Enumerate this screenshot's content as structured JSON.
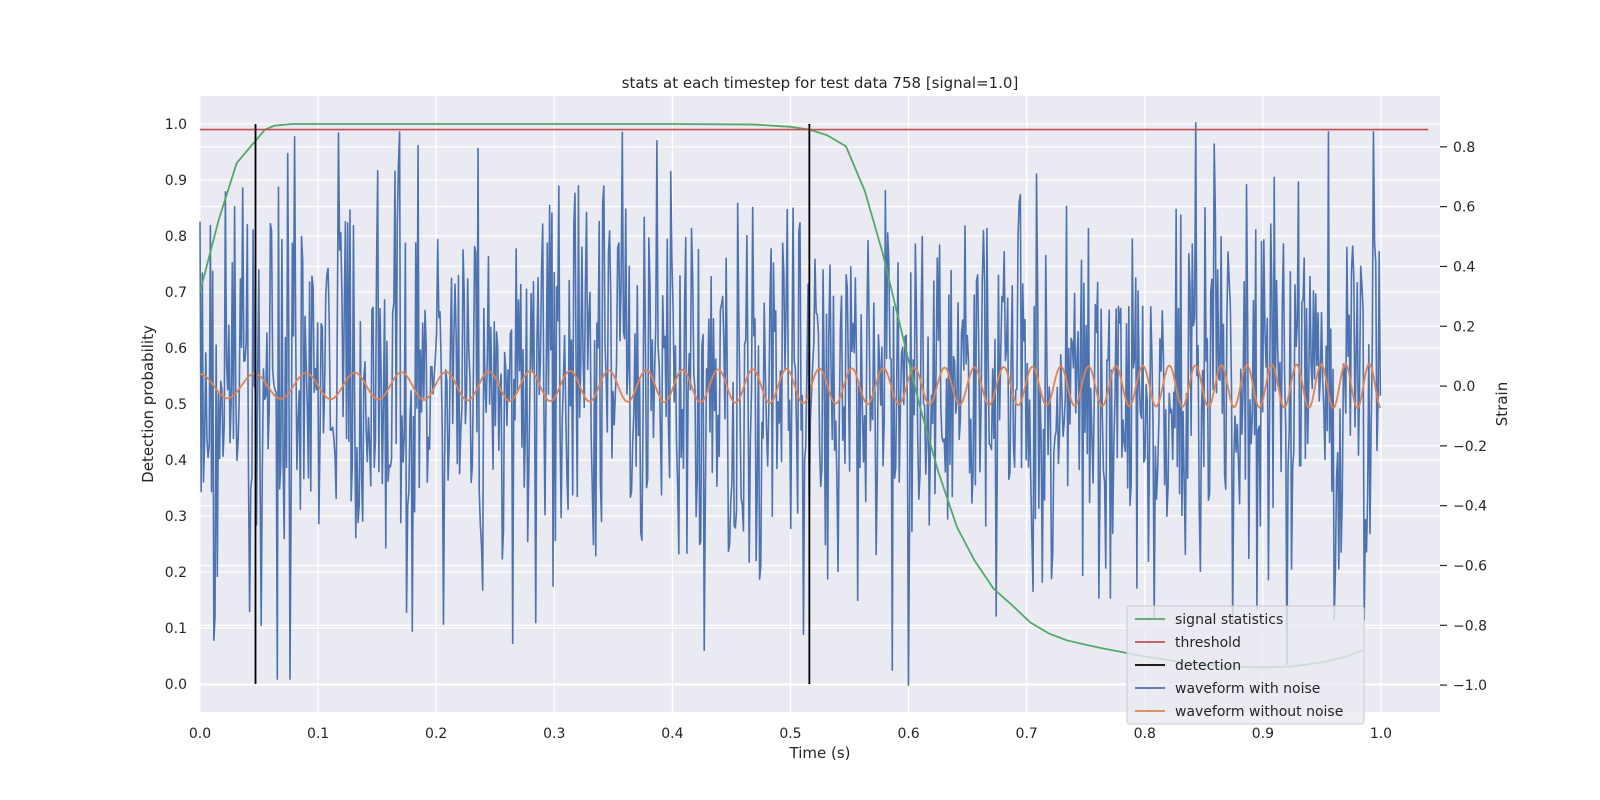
{
  "chart_data": {
    "type": "line",
    "title": "stats at each timestep for test data 758 [signal=1.0]",
    "xlabel": "Time (s)",
    "ylabel": "Detection probability",
    "y2label": "Strain",
    "xlim": [
      0.0,
      1.05
    ],
    "ylim": [
      -0.05,
      1.05
    ],
    "y2lim": [
      -1.09,
      0.97
    ],
    "xticks": [
      "0.0",
      "0.1",
      "0.2",
      "0.3",
      "0.4",
      "0.5",
      "0.6",
      "0.7",
      "0.8",
      "0.9",
      "1.0"
    ],
    "yticks": [
      "0.0",
      "0.1",
      "0.2",
      "0.3",
      "0.4",
      "0.5",
      "0.6",
      "0.7",
      "0.8",
      "0.9",
      "1.0"
    ],
    "y2ticks": [
      "−1.0",
      "−0.8",
      "−0.6",
      "−0.4",
      "−0.2",
      "0.0",
      "0.2",
      "0.4",
      "0.6",
      "0.8"
    ],
    "grid": true,
    "legend_position": "lower-right",
    "colors": {
      "signal": "#55a868",
      "threshold": "#c44e52",
      "detection": "#000000",
      "noisy": "#4c72b0",
      "clean": "#dd8452",
      "plot_bg": "#eaeaf2",
      "grid": "#ffffff"
    },
    "series": [
      {
        "name": "signal statistics",
        "axis": "left",
        "x": [
          0.0,
          0.016,
          0.031,
          0.047,
          0.055,
          0.063,
          0.078,
          0.1,
          0.2,
          0.3,
          0.4,
          0.47,
          0.5,
          0.516,
          0.531,
          0.547,
          0.563,
          0.578,
          0.594,
          0.609,
          0.625,
          0.641,
          0.656,
          0.672,
          0.688,
          0.703,
          0.719,
          0.734,
          0.75,
          0.766,
          0.781,
          0.797,
          0.813,
          0.828,
          0.844,
          0.859,
          0.875,
          0.891,
          0.906,
          0.922,
          0.938,
          0.953,
          0.969,
          0.984
        ],
        "y": [
          0.7,
          0.83,
          0.93,
          0.97,
          0.99,
          0.997,
          1.0,
          1.0,
          1.0,
          1.0,
          1.0,
          0.999,
          0.995,
          0.99,
          0.98,
          0.96,
          0.88,
          0.77,
          0.63,
          0.5,
          0.38,
          0.28,
          0.22,
          0.17,
          0.14,
          0.11,
          0.09,
          0.078,
          0.07,
          0.063,
          0.057,
          0.05,
          0.045,
          0.04,
          0.036,
          0.033,
          0.031,
          0.03,
          0.03,
          0.031,
          0.035,
          0.04,
          0.048,
          0.06
        ]
      },
      {
        "name": "threshold",
        "axis": "left",
        "x": [
          0.0,
          1.04
        ],
        "y": [
          0.99,
          0.99
        ]
      },
      {
        "name": "detection",
        "axis": "left",
        "vlines": [
          0.047,
          0.516
        ],
        "ymin": 0.0,
        "ymax": 1.0
      },
      {
        "name": "waveform with noise",
        "axis": "right",
        "seed": 758,
        "x_start": 0.0,
        "x_end": 0.9995,
        "num_points": 1024,
        "std": 0.32,
        "peaks": [
          [
            0.0,
            0.55
          ],
          [
            0.0117,
            -0.85
          ],
          [
            0.0859,
            0.5
          ],
          [
            0.1504,
            0.72
          ],
          [
            0.1797,
            -0.82
          ],
          [
            0.2646,
            -0.86
          ],
          [
            0.3867,
            0.82
          ],
          [
            0.5859,
            -0.95
          ],
          [
            0.5996,
            -1.0
          ],
          [
            0.8428,
            0.88
          ],
          [
            0.9199,
            -0.93
          ],
          [
            0.999,
            0.45
          ]
        ]
      },
      {
        "name": "waveform without noise",
        "axis": "right",
        "x_start": 0.0,
        "x_end": 0.9995,
        "num_points": 1024,
        "amplitude_start": 0.04,
        "amplitude_end": 0.075,
        "freq_start": 21,
        "freq_end": 50
      }
    ]
  }
}
